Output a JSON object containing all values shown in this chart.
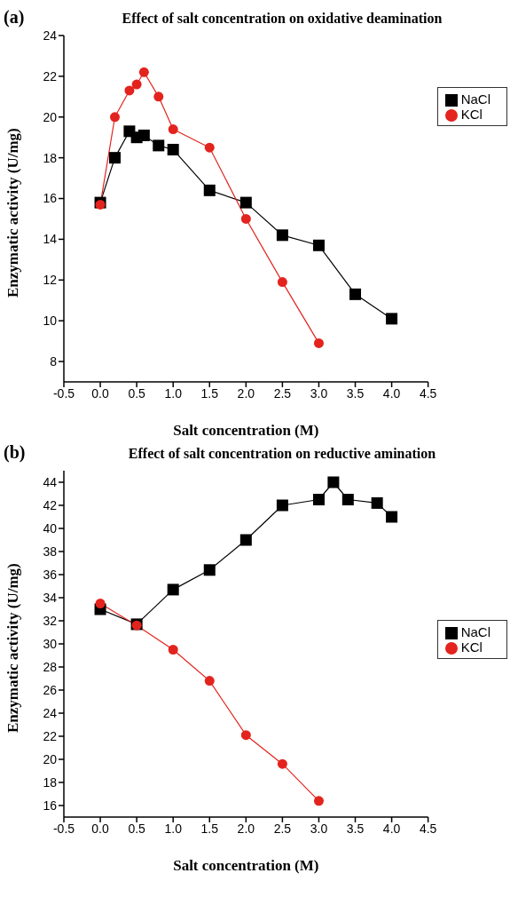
{
  "chart_data": [
    {
      "type": "line",
      "title": "Effect of salt concentration on oxidative deamination",
      "xlabel": "Salt concentration (M)",
      "ylabel": "Enzymatic activity (U/mg)",
      "annotations": [
        "(a)"
      ],
      "xlim": [
        -0.5,
        4.5
      ],
      "xticks": [
        {
          "value": -0.5,
          "label": "-0.5"
        },
        {
          "value": 0,
          "label": "0.0"
        },
        {
          "value": 0.5,
          "label": "0.5"
        },
        {
          "value": 1,
          "label": "1.0"
        },
        {
          "value": 1.5,
          "label": "1.5"
        },
        {
          "value": 2,
          "label": "2.0"
        },
        {
          "value": 2.5,
          "label": "2.5"
        },
        {
          "value": 3,
          "label": "3.0"
        },
        {
          "value": 3.5,
          "label": "3.5"
        },
        {
          "value": 4,
          "label": "4.0"
        },
        {
          "value": 4.5,
          "label": "4.5"
        }
      ],
      "ylim": [
        7,
        24
      ],
      "yticks": [
        8,
        10,
        12,
        14,
        16,
        18,
        20,
        22,
        24
      ],
      "legend": "top right",
      "grid": false,
      "series": [
        {
          "name": "NaCl",
          "color": "#000000",
          "marker": "square",
          "x": [
            0,
            0.2,
            0.4,
            0.5,
            0.6,
            0.8,
            1,
            1.5,
            2,
            2.5,
            3,
            3.5,
            4
          ],
          "values": [
            15.8,
            18.0,
            19.3,
            19.0,
            19.1,
            18.6,
            18.4,
            16.4,
            15.8,
            14.2,
            13.7,
            11.3,
            10.1
          ]
        },
        {
          "name": "KCl",
          "color": "#e3231e",
          "marker": "circle",
          "x": [
            0,
            0.2,
            0.4,
            0.5,
            0.6,
            0.8,
            1,
            1.5,
            2,
            2.5,
            3
          ],
          "values": [
            15.7,
            20.0,
            21.3,
            21.6,
            22.2,
            21.0,
            19.4,
            18.5,
            15.0,
            11.9,
            8.9
          ]
        }
      ]
    },
    {
      "type": "line",
      "title": "Effect of salt concentration on reductive amination",
      "xlabel": "Salt concentration (M)",
      "ylabel": "Enzymatic activity (U/mg)",
      "annotations": [
        "(b)"
      ],
      "xlim": [
        -0.5,
        4.5
      ],
      "xticks": [
        {
          "value": -0.5,
          "label": "-0.5"
        },
        {
          "value": 0,
          "label": "0.0"
        },
        {
          "value": 0.5,
          "label": "0.5"
        },
        {
          "value": 1,
          "label": "1.0"
        },
        {
          "value": 1.5,
          "label": "1.5"
        },
        {
          "value": 2,
          "label": "2.0"
        },
        {
          "value": 2.5,
          "label": "2.5"
        },
        {
          "value": 3,
          "label": "3.0"
        },
        {
          "value": 3.5,
          "label": "3.5"
        },
        {
          "value": 4,
          "label": "4.0"
        },
        {
          "value": 4.5,
          "label": "4.5"
        }
      ],
      "ylim": [
        15,
        45
      ],
      "yticks": [
        16,
        18,
        20,
        22,
        24,
        26,
        28,
        30,
        32,
        34,
        36,
        38,
        40,
        42,
        44
      ],
      "legend": "right",
      "grid": false,
      "series": [
        {
          "name": "NaCl",
          "color": "#000000",
          "marker": "square",
          "x": [
            0,
            0.5,
            1,
            1.5,
            2,
            2.5,
            3,
            3.2,
            3.4,
            3.8,
            4
          ],
          "values": [
            33.0,
            31.7,
            34.7,
            36.4,
            39.0,
            42.0,
            42.5,
            44.0,
            42.5,
            42.2,
            41.0
          ]
        },
        {
          "name": "KCl",
          "color": "#e3231e",
          "marker": "circle",
          "x": [
            0,
            0.5,
            1,
            1.5,
            2,
            2.5,
            3
          ],
          "values": [
            33.5,
            31.6,
            29.5,
            26.8,
            22.1,
            19.6,
            16.4
          ]
        }
      ]
    }
  ]
}
